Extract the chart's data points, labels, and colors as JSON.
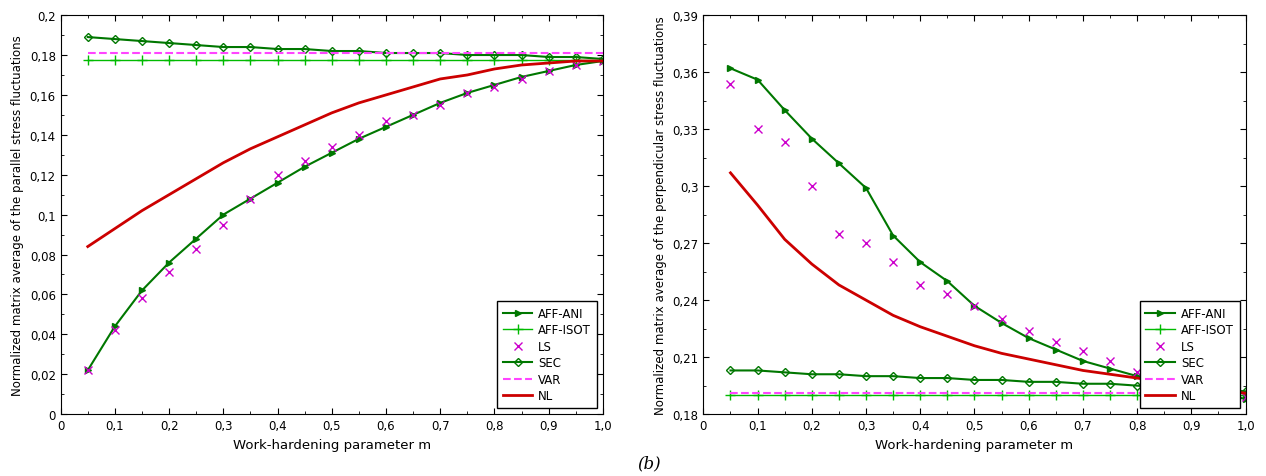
{
  "left": {
    "ylabel": "Normalized matrix average of the parallel stress fluctuations",
    "xlabel": "Work-hardening parameter m",
    "ylim": [
      0,
      0.2
    ],
    "yticks": [
      0,
      0.02,
      0.04,
      0.06,
      0.08,
      0.1,
      0.12,
      0.14,
      0.16,
      0.18,
      0.2
    ],
    "xticks": [
      0,
      0.1,
      0.2,
      0.3,
      0.4,
      0.5,
      0.6,
      0.7,
      0.8,
      0.9,
      1.0
    ],
    "xlim": [
      0,
      1.0
    ],
    "series": {
      "AFF-ANI": {
        "x": [
          0.05,
          0.1,
          0.15,
          0.2,
          0.25,
          0.3,
          0.35,
          0.4,
          0.45,
          0.5,
          0.55,
          0.6,
          0.65,
          0.7,
          0.75,
          0.8,
          0.85,
          0.9,
          0.95,
          1.0
        ],
        "y": [
          0.022,
          0.044,
          0.062,
          0.076,
          0.088,
          0.1,
          0.108,
          0.116,
          0.124,
          0.131,
          0.138,
          0.144,
          0.15,
          0.156,
          0.161,
          0.165,
          0.169,
          0.172,
          0.175,
          0.177
        ],
        "color": "#007700",
        "linestyle": "-",
        "marker": ">",
        "markersize": 4,
        "linewidth": 1.5
      },
      "AFF-ISOT": {
        "x": [
          0.05,
          0.1,
          0.15,
          0.2,
          0.25,
          0.3,
          0.35,
          0.4,
          0.45,
          0.5,
          0.55,
          0.6,
          0.65,
          0.7,
          0.75,
          0.8,
          0.85,
          0.9,
          0.95,
          1.0
        ],
        "y": [
          0.1775,
          0.1775,
          0.1775,
          0.1775,
          0.1775,
          0.1775,
          0.1775,
          0.1775,
          0.1775,
          0.1775,
          0.1775,
          0.1775,
          0.1775,
          0.1775,
          0.1775,
          0.1775,
          0.1775,
          0.1775,
          0.1775,
          0.1775
        ],
        "color": "#00bb00",
        "linestyle": "-",
        "marker": "+",
        "markersize": 7,
        "linewidth": 1.0
      },
      "LS": {
        "x": [
          0.05,
          0.1,
          0.15,
          0.2,
          0.25,
          0.3,
          0.35,
          0.4,
          0.45,
          0.5,
          0.55,
          0.6,
          0.65,
          0.7,
          0.75,
          0.8,
          0.85,
          0.9,
          0.95,
          1.0
        ],
        "y": [
          0.022,
          0.042,
          0.058,
          0.071,
          0.083,
          0.095,
          0.108,
          0.12,
          0.127,
          0.134,
          0.14,
          0.147,
          0.15,
          0.155,
          0.161,
          0.164,
          0.168,
          0.172,
          0.175,
          0.177
        ],
        "color": "#cc00cc",
        "linestyle": "none",
        "marker": "x",
        "markersize": 6,
        "linewidth": 1.0
      },
      "SEC": {
        "x": [
          0.05,
          0.1,
          0.15,
          0.2,
          0.25,
          0.3,
          0.35,
          0.4,
          0.45,
          0.5,
          0.55,
          0.6,
          0.65,
          0.7,
          0.75,
          0.8,
          0.85,
          0.9,
          0.95,
          1.0
        ],
        "y": [
          0.189,
          0.188,
          0.187,
          0.186,
          0.185,
          0.184,
          0.184,
          0.183,
          0.183,
          0.182,
          0.182,
          0.181,
          0.181,
          0.181,
          0.18,
          0.18,
          0.18,
          0.179,
          0.179,
          0.178
        ],
        "color": "#007700",
        "linestyle": "-",
        "marker": "D",
        "markersize": 4,
        "linewidth": 1.5
      },
      "VAR": {
        "x": [
          0.05,
          1.0
        ],
        "y": [
          0.181,
          0.181
        ],
        "color": "#ff44ff",
        "linestyle": "--",
        "marker": "none",
        "markersize": 0,
        "linewidth": 1.5
      },
      "NL": {
        "x": [
          0.05,
          0.1,
          0.15,
          0.2,
          0.25,
          0.3,
          0.35,
          0.4,
          0.45,
          0.5,
          0.55,
          0.6,
          0.65,
          0.7,
          0.75,
          0.8,
          0.85,
          0.9,
          0.95,
          1.0
        ],
        "y": [
          0.084,
          0.093,
          0.102,
          0.11,
          0.118,
          0.126,
          0.133,
          0.139,
          0.145,
          0.151,
          0.156,
          0.16,
          0.164,
          0.168,
          0.17,
          0.173,
          0.175,
          0.176,
          0.177,
          0.177
        ],
        "color": "#cc0000",
        "linestyle": "-",
        "marker": "none",
        "markersize": 0,
        "linewidth": 2.0
      }
    }
  },
  "right": {
    "ylabel": "Normalized matrix average of the perpendicular stress fluctuations",
    "xlabel": "Work-hardening parameter m",
    "ylim": [
      0.18,
      0.39
    ],
    "yticks": [
      0.18,
      0.21,
      0.24,
      0.27,
      0.3,
      0.33,
      0.36,
      0.39
    ],
    "xticks": [
      0,
      0.1,
      0.2,
      0.3,
      0.4,
      0.5,
      0.6,
      0.7,
      0.8,
      0.9,
      1.0
    ],
    "xlim": [
      0,
      1.0
    ],
    "series": {
      "AFF-ANI": {
        "x": [
          0.05,
          0.1,
          0.15,
          0.2,
          0.25,
          0.3,
          0.35,
          0.4,
          0.45,
          0.5,
          0.55,
          0.6,
          0.65,
          0.7,
          0.75,
          0.8,
          0.85,
          0.9,
          0.95,
          1.0
        ],
        "y": [
          0.362,
          0.356,
          0.34,
          0.325,
          0.312,
          0.299,
          0.274,
          0.26,
          0.25,
          0.237,
          0.228,
          0.22,
          0.214,
          0.208,
          0.204,
          0.2,
          0.197,
          0.194,
          0.191,
          0.188
        ],
        "color": "#007700",
        "linestyle": "-",
        "marker": ">",
        "markersize": 4,
        "linewidth": 1.5
      },
      "AFF-ISOT": {
        "x": [
          0.05,
          0.1,
          0.15,
          0.2,
          0.25,
          0.3,
          0.35,
          0.4,
          0.45,
          0.5,
          0.55,
          0.6,
          0.65,
          0.7,
          0.75,
          0.8,
          0.85,
          0.9,
          0.95,
          1.0
        ],
        "y": [
          0.19,
          0.19,
          0.19,
          0.19,
          0.19,
          0.19,
          0.19,
          0.19,
          0.19,
          0.19,
          0.19,
          0.19,
          0.19,
          0.19,
          0.19,
          0.19,
          0.19,
          0.19,
          0.19,
          0.19
        ],
        "color": "#00bb00",
        "linestyle": "-",
        "marker": "+",
        "markersize": 7,
        "linewidth": 1.0
      },
      "LS": {
        "x": [
          0.05,
          0.1,
          0.15,
          0.2,
          0.25,
          0.3,
          0.35,
          0.4,
          0.45,
          0.5,
          0.55,
          0.6,
          0.65,
          0.7,
          0.75,
          0.8,
          0.85,
          0.9,
          0.95,
          1.0
        ],
        "y": [
          0.354,
          0.33,
          0.323,
          0.3,
          0.275,
          0.27,
          0.26,
          0.248,
          0.243,
          0.237,
          0.23,
          0.224,
          0.218,
          0.213,
          0.208,
          0.202,
          0.199,
          0.195,
          0.192,
          0.189
        ],
        "color": "#cc00cc",
        "linestyle": "none",
        "marker": "x",
        "markersize": 6,
        "linewidth": 1.0
      },
      "SEC": {
        "x": [
          0.05,
          0.1,
          0.15,
          0.2,
          0.25,
          0.3,
          0.35,
          0.4,
          0.45,
          0.5,
          0.55,
          0.6,
          0.65,
          0.7,
          0.75,
          0.8,
          0.85,
          0.9,
          0.95,
          1.0
        ],
        "y": [
          0.203,
          0.203,
          0.202,
          0.201,
          0.201,
          0.2,
          0.2,
          0.199,
          0.199,
          0.198,
          0.198,
          0.197,
          0.197,
          0.196,
          0.196,
          0.195,
          0.194,
          0.194,
          0.193,
          0.192
        ],
        "color": "#007700",
        "linestyle": "-",
        "marker": "D",
        "markersize": 4,
        "linewidth": 1.5
      },
      "VAR": {
        "x": [
          0.05,
          1.0
        ],
        "y": [
          0.191,
          0.191
        ],
        "color": "#ff44ff",
        "linestyle": "--",
        "marker": "none",
        "markersize": 0,
        "linewidth": 1.5
      },
      "NL": {
        "x": [
          0.05,
          0.1,
          0.15,
          0.2,
          0.25,
          0.3,
          0.35,
          0.4,
          0.45,
          0.5,
          0.55,
          0.6,
          0.65,
          0.7,
          0.75,
          0.8,
          0.85,
          0.9,
          0.95,
          1.0
        ],
        "y": [
          0.307,
          0.29,
          0.272,
          0.259,
          0.248,
          0.24,
          0.232,
          0.226,
          0.221,
          0.216,
          0.212,
          0.209,
          0.206,
          0.203,
          0.201,
          0.199,
          0.197,
          0.195,
          0.193,
          0.191
        ],
        "color": "#cc0000",
        "linestyle": "-",
        "marker": "none",
        "markersize": 0,
        "linewidth": 2.0
      }
    }
  },
  "label_b": "(b)",
  "background_color": "#ffffff"
}
